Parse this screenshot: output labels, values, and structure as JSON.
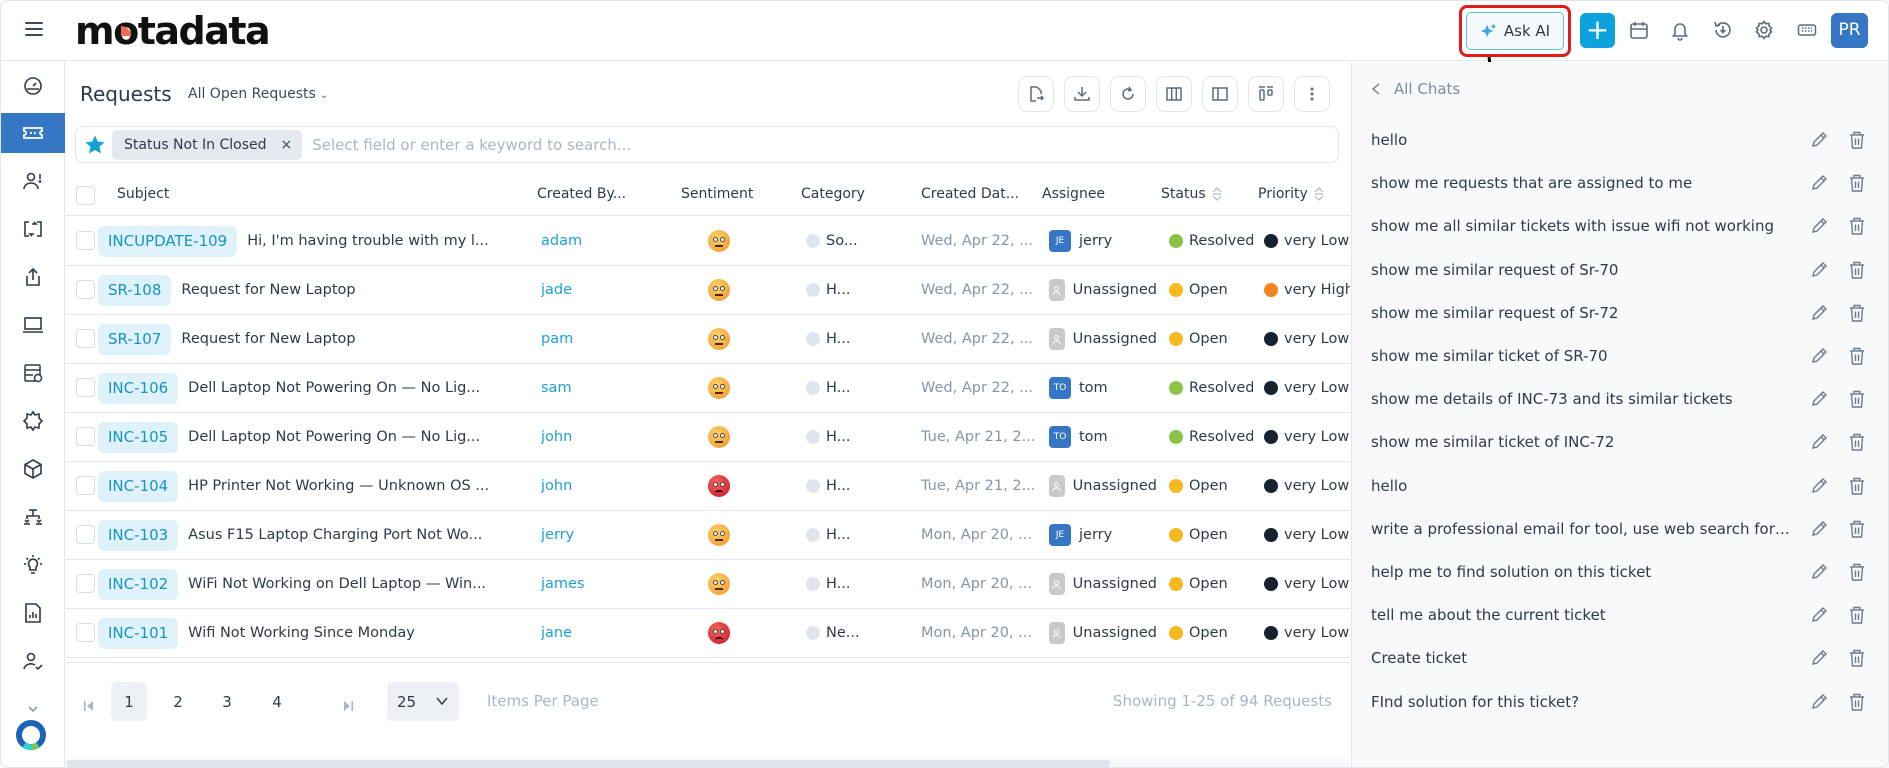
{
  "header": {
    "logo": "motadata",
    "ask_ai_label": "Ask AI",
    "avatar_initials": "PR",
    "icons": [
      "menu-icon",
      "plus-icon",
      "calendar-icon",
      "bell-icon",
      "history-icon",
      "gear-icon",
      "keyboard-icon"
    ]
  },
  "leftnav": {
    "items": [
      {
        "name": "dashboard",
        "icon": "dashboard-icon",
        "active": false
      },
      {
        "name": "requests",
        "icon": "ticket-icon",
        "active": true
      },
      {
        "name": "problems",
        "icon": "user-alert-icon",
        "active": false
      },
      {
        "name": "changes",
        "icon": "swap-icon",
        "active": false
      },
      {
        "name": "releases",
        "icon": "upload-icon",
        "active": false
      },
      {
        "name": "assets",
        "icon": "laptop-icon",
        "active": false
      },
      {
        "name": "cmdb",
        "icon": "server-settings-icon",
        "active": false
      },
      {
        "name": "patch",
        "icon": "gear-burst-icon",
        "active": false
      },
      {
        "name": "products",
        "icon": "cube-icon",
        "active": false
      },
      {
        "name": "projects",
        "icon": "hierarchy-icon",
        "active": false
      },
      {
        "name": "knowledge",
        "icon": "bulb-icon",
        "active": false
      },
      {
        "name": "reports",
        "icon": "report-icon",
        "active": false
      },
      {
        "name": "users",
        "icon": "user-check-icon",
        "active": false
      }
    ]
  },
  "main": {
    "title": "Requests",
    "view": "All Open Requests",
    "toolbar": [
      "export-icon",
      "download-icon",
      "refresh-icon",
      "columns-icon",
      "split-view-icon",
      "kanban-icon",
      "more-icon"
    ],
    "search": {
      "filter_chip": "Status Not In Closed",
      "placeholder": "Select field or enter a keyword to search..."
    },
    "columns": {
      "subject": "Subject",
      "created_by": "Created By...",
      "sentiment": "Sentiment",
      "category": "Category",
      "created_date": "Created Dat...",
      "assignee": "Assignee",
      "status": "Status",
      "priority": "Priority"
    },
    "rows": [
      {
        "id": "INCUPDATE-109",
        "subject": "Hi, I'm having trouble with my l...",
        "created_by": "adam",
        "sentiment": "neutral",
        "category": "So...",
        "date": "Wed, Apr 22, ...",
        "assignee": "jerry",
        "assignee_initials": "JE",
        "status": "Resolved",
        "status_color": "#8bc34a",
        "priority": "very Low",
        "priority_color": "#172231"
      },
      {
        "id": "SR-108",
        "subject": "Request for New Laptop",
        "created_by": "jade",
        "sentiment": "neutral",
        "category": "H...",
        "date": "Wed, Apr 22, ...",
        "assignee": "Unassigned",
        "assignee_initials": "",
        "status": "Open",
        "status_color": "#f5b820",
        "priority": "very High",
        "priority_color": "#f4841c"
      },
      {
        "id": "SR-107",
        "subject": "Request for New Laptop",
        "created_by": "pam",
        "sentiment": "neutral",
        "category": "H...",
        "date": "Wed, Apr 22, ...",
        "assignee": "Unassigned",
        "assignee_initials": "",
        "status": "Open",
        "status_color": "#f5b820",
        "priority": "very Low",
        "priority_color": "#172231"
      },
      {
        "id": "INC-106",
        "subject": "Dell Laptop Not Powering On — No Lig...",
        "created_by": "sam",
        "sentiment": "neutral",
        "category": "H...",
        "date": "Wed, Apr 22, ...",
        "assignee": "tom",
        "assignee_initials": "TO",
        "status": "Resolved",
        "status_color": "#8bc34a",
        "priority": "very Low",
        "priority_color": "#172231"
      },
      {
        "id": "INC-105",
        "subject": "Dell Laptop Not Powering On — No Lig...",
        "created_by": "john",
        "sentiment": "neutral",
        "category": "H...",
        "date": "Tue, Apr 21, 2...",
        "assignee": "tom",
        "assignee_initials": "TO",
        "status": "Resolved",
        "status_color": "#8bc34a",
        "priority": "very Low",
        "priority_color": "#172231"
      },
      {
        "id": "INC-104",
        "subject": "HP Printer Not Working — Unknown OS ...",
        "created_by": "john",
        "sentiment": "angry",
        "category": "H...",
        "date": "Tue, Apr 21, 2...",
        "assignee": "Unassigned",
        "assignee_initials": "",
        "status": "Open",
        "status_color": "#f5b820",
        "priority": "very Low",
        "priority_color": "#172231"
      },
      {
        "id": "INC-103",
        "subject": "Asus F15 Laptop Charging Port Not Wo...",
        "created_by": "jerry",
        "sentiment": "neutral",
        "category": "H...",
        "date": "Mon, Apr 20, ...",
        "assignee": "jerry",
        "assignee_initials": "JE",
        "status": "Open",
        "status_color": "#f5b820",
        "priority": "very Low",
        "priority_color": "#172231"
      },
      {
        "id": "INC-102",
        "subject": "WiFi Not Working on Dell Laptop — Win...",
        "created_by": "james",
        "sentiment": "neutral",
        "category": "H...",
        "date": "Mon, Apr 20, ...",
        "assignee": "Unassigned",
        "assignee_initials": "",
        "status": "Open",
        "status_color": "#f5b820",
        "priority": "very Low",
        "priority_color": "#172231"
      },
      {
        "id": "INC-101",
        "subject": "Wifi Not Working Since Monday",
        "created_by": "jane",
        "sentiment": "angry",
        "category": "Ne...",
        "date": "Mon, Apr 20, ...",
        "assignee": "Unassigned",
        "assignee_initials": "",
        "status": "Open",
        "status_color": "#f5b820",
        "priority": "very Low",
        "priority_color": "#172231"
      }
    ],
    "pagination": {
      "pages": [
        "1",
        "2",
        "3",
        "4"
      ],
      "current": "1",
      "per_page": "25",
      "per_page_label": "Items Per Page",
      "showing": "Showing 1-25 of 94 Requests"
    }
  },
  "chat_panel": {
    "back_label": "All Chats",
    "chats": [
      "hello",
      "show me requests that are assigned to me",
      "show me all similar tickets with issue wifi not working",
      "show me similar request of Sr-70",
      "show me similar request of Sr-72",
      "show me similar ticket of SR-70",
      "show me details of INC-73 and its similar tickets",
      "show me similar ticket of INC-72",
      "hello",
      "write a professional email for tool, use web search for be...",
      "help me to find solution on this ticket",
      "tell me about the current ticket",
      "Create ticket",
      "FInd solution for this ticket?"
    ]
  },
  "colors": {
    "accent": "#3577c4",
    "primary_button": "#0ea2dc",
    "id_chip_bg": "#e0f2f9",
    "id_chip_text": "#1594c8",
    "annotation_red": "#e21b1b"
  }
}
